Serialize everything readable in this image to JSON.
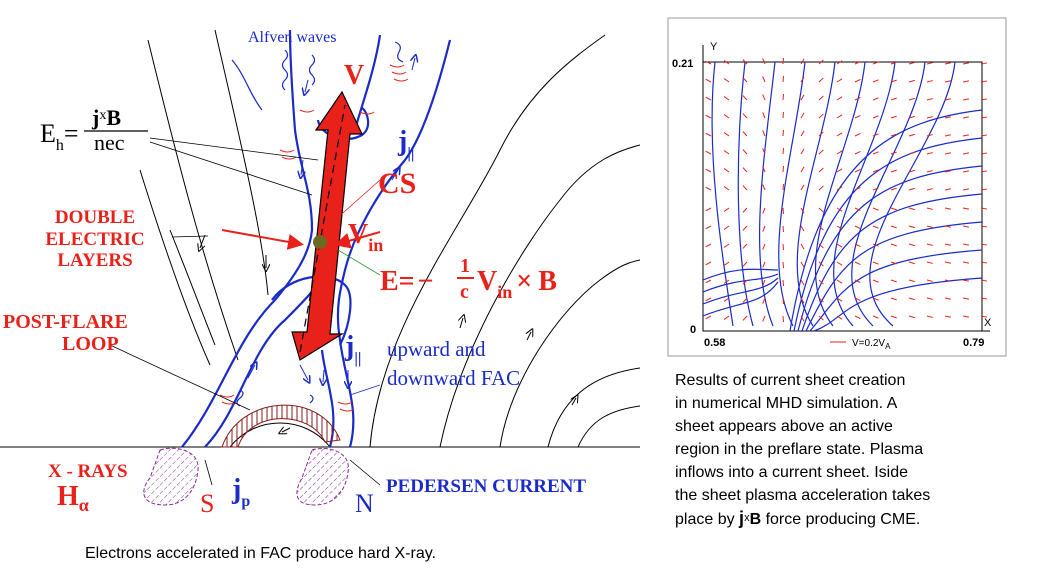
{
  "diagram": {
    "alfven_waves": "Alfven waves",
    "v_top": "V",
    "eh": {
      "symbol": "E",
      "sub": "h",
      "eq": "=",
      "num_j": "j",
      "num_x": "x",
      "num_b": "B",
      "den": "nec"
    },
    "j_par_top": {
      "symbol": "j",
      "sub": "||"
    },
    "cs": "CS",
    "double_layers": [
      "DOUBLE",
      "ELECTRIC",
      "LAYERS"
    ],
    "v_in": {
      "symbol": "V",
      "sub": "in"
    },
    "e_field": {
      "lhs": "E=",
      "minus": "−",
      "one": "1",
      "c": "c",
      "v": "V",
      "sub": "in",
      "cross": "×",
      "b": "B"
    },
    "post_flare": [
      "POST-FLARE",
      "LOOP"
    ],
    "j_par_bottom": {
      "symbol": "j",
      "sub": "||"
    },
    "fac": [
      "upward and",
      "downward FAC"
    ],
    "x_rays": "X - RAYS",
    "h_alpha": {
      "symbol": "H",
      "sub": "α"
    },
    "s": "S",
    "j_p": {
      "symbol": "j",
      "sub": "p"
    },
    "n": "N",
    "pedersen": "PEDERSEN CURRENT",
    "caption": "Electrons accelerated in FAC produce hard X-ray."
  },
  "inset": {
    "y_axis": "Y",
    "x_axis": "X",
    "y_top": "0.21",
    "y_bottom": "0",
    "x_left": "0.58",
    "x_right": "0.79",
    "scale": {
      "text": "V=0.2V",
      "sub": "A"
    }
  },
  "inset_caption": {
    "lines": [
      "Results of current sheet creation",
      "in  numerical  MHD simulation. A",
      "sheet appears above an active",
      "region in the preflare state. Plasma",
      "inflows into a current sheet. Iside",
      "the sheet plasma acceleration takes"
    ],
    "last": {
      "pre": "place by ",
      "j": "j",
      "x": "x",
      "b": "B",
      "post": " force producing CME."
    }
  }
}
